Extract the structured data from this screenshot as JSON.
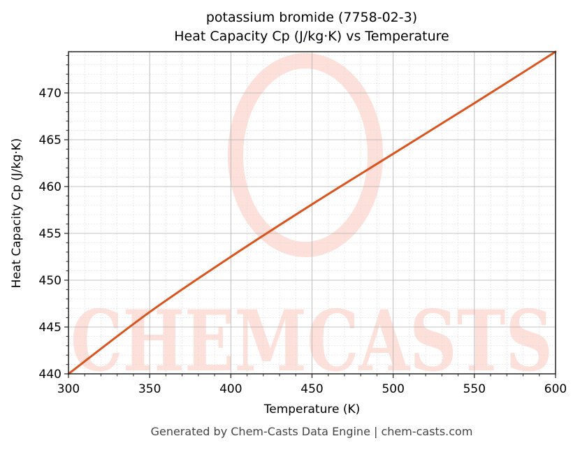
{
  "chart_data": {
    "type": "line",
    "title": "potassium bromide (7758-02-3)",
    "subtitle": "Heat Capacity Cp (J/kg·K) vs Temperature",
    "xlabel": "Temperature (K)",
    "ylabel": "Heat Capacity Cp (J/kg·K)",
    "xlim": [
      300,
      600
    ],
    "ylim": [
      440,
      474.4
    ],
    "xticks": [
      300,
      350,
      400,
      450,
      500,
      550,
      600
    ],
    "yticks": [
      440,
      445,
      450,
      455,
      460,
      465,
      470
    ],
    "grid": {
      "major": true,
      "minor": true
    },
    "legend": null,
    "series": [
      {
        "name": "Cp",
        "color": "#d9541e",
        "x": [
          300,
          350,
          400,
          450,
          500,
          550,
          600
        ],
        "y": [
          440.0,
          446.6,
          452.5,
          458.1,
          463.5,
          468.9,
          474.4
        ]
      }
    ],
    "watermark": "CHEMCASTS"
  },
  "header": {
    "title_line1": "potassium bromide (7758-02-3)",
    "title_line2": "Heat Capacity Cp (J/kg·K) vs Temperature"
  },
  "axes": {
    "xlabel": "Temperature (K)",
    "ylabel": "Heat Capacity Cp (J/kg·K)"
  },
  "footer": {
    "text": "Generated by Chem-Casts Data Engine | chem-casts.com"
  },
  "colors": {
    "line": "#d9541e",
    "watermark": "#fde0da",
    "major_grid": "#b0b0b0",
    "minor_grid": "#dddddd"
  }
}
